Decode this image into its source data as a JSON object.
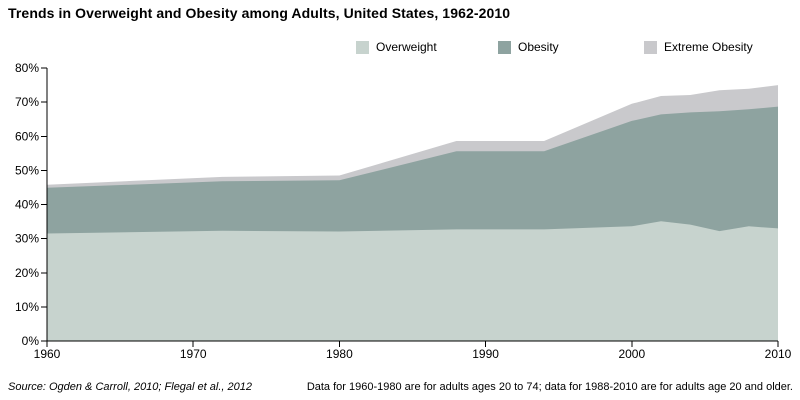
{
  "chart_data": {
    "type": "area",
    "stacked": true,
    "title": "Trends in Overweight and Obesity among Adults, United States, 1962-2010",
    "x": [
      1960,
      1972,
      1980,
      1988,
      1994,
      2000,
      2002,
      2004,
      2006,
      2008,
      2010
    ],
    "series": [
      {
        "name": "Overweight",
        "color": "#c7d3ce",
        "values": [
          31.5,
          32.3,
          32.1,
          32.7,
          32.7,
          33.6,
          35.1,
          34.1,
          32.2,
          33.6,
          33.0
        ]
      },
      {
        "name": "Obesity",
        "color": "#8ea3a0",
        "values": [
          13.4,
          14.5,
          15.0,
          22.9,
          22.9,
          30.9,
          31.3,
          32.9,
          35.1,
          34.3,
          35.7
        ]
      },
      {
        "name": "Extreme Obesity",
        "color": "#c9c9cc",
        "values": [
          0.9,
          1.3,
          1.4,
          3.0,
          3.0,
          5.0,
          5.4,
          5.1,
          6.2,
          6.0,
          6.3
        ]
      }
    ],
    "xlim": [
      1960,
      2010
    ],
    "ylim": [
      0,
      80
    ],
    "x_ticks": [
      1960,
      1970,
      1980,
      1990,
      2000,
      2010
    ],
    "y_tick_labels": [
      "0%",
      "10%",
      "20%",
      "30%",
      "40%",
      "50%",
      "60%",
      "70%",
      "80%"
    ],
    "grid": false,
    "legend_position": "top-right",
    "axis_color": "#000000"
  },
  "footer": {
    "source": "Source: Ogden & Carroll, 2010; Flegal et al., 2012",
    "note": "Data for 1960-1980 are for adults ages 20 to 74; data for 1988-2010 are for adults age 20 and older."
  }
}
